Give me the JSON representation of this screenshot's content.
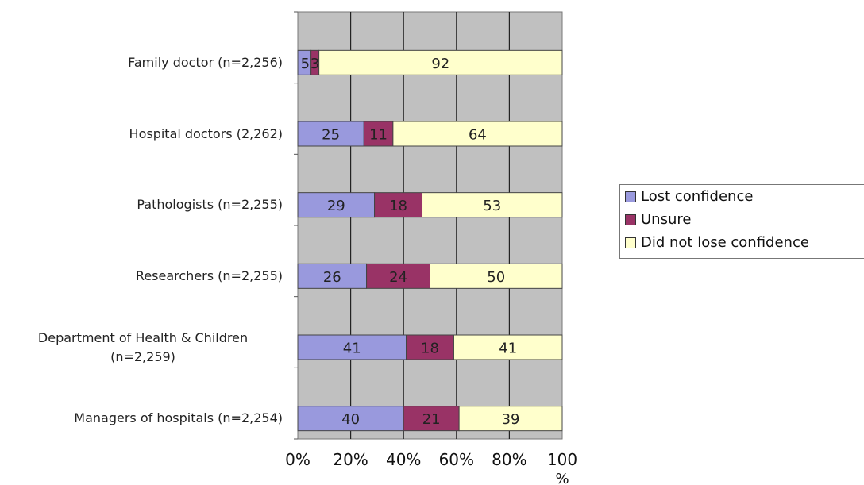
{
  "chart_data": {
    "type": "bar",
    "orientation": "horizontal",
    "stacked": true,
    "categories": [
      "Family doctor (n=2,256)",
      "Hospital doctors (2,262)",
      "Pathologists (n=2,255)",
      "Researchers (n=2,255)",
      "Department of Health & Children (n=2,259)",
      "Managers of hospitals (n=2,254)"
    ],
    "category_lines": [
      [
        "Family doctor (n=2,256)"
      ],
      [
        "Hospital doctors (2,262)"
      ],
      [
        "Pathologists (n=2,255)"
      ],
      [
        "Researchers (n=2,255)"
      ],
      [
        "Department of Health & Children",
        "(n=2,259)"
      ],
      [
        "Managers of hospitals (n=2,254)"
      ]
    ],
    "series": [
      {
        "name": "Lost confidence",
        "color": "#9999dd",
        "values": [
          5,
          25,
          29,
          26,
          41,
          40
        ]
      },
      {
        "name": "Unsure",
        "color": "#993366",
        "values": [
          3,
          11,
          18,
          24,
          18,
          21
        ]
      },
      {
        "name": "Did not lose confidence",
        "color": "#ffffcc",
        "values": [
          92,
          64,
          53,
          50,
          41,
          39
        ]
      }
    ],
    "x_ticks": [
      "0%",
      "20%",
      "40%",
      "60%",
      "80%",
      "100"
    ],
    "x_unit": "%",
    "xlim": [
      0,
      100
    ],
    "grid": true,
    "plot_background": "#c0c0c0",
    "legend_position": "right"
  }
}
